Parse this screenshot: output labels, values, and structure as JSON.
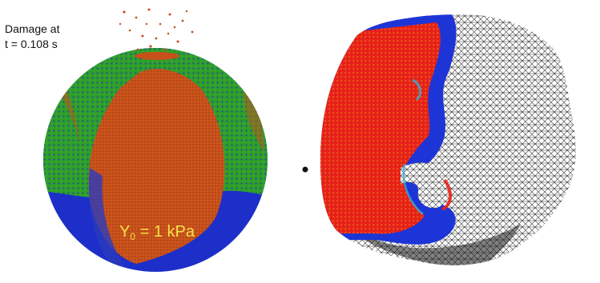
{
  "damage_label": {
    "line1": "Damage at",
    "line2": "t = 0.108 s"
  },
  "yield_label": {
    "symbol": "Y",
    "subscript": "0",
    "rest": " = 1 kPa"
  },
  "colors": {
    "undamaged": "#1d2fc8",
    "partial_damage": "#2f9e2a",
    "damaged": "#c8501a",
    "fully_damaged": "#e8231a",
    "mesh": "#222222",
    "mesh_background": "#ffffff",
    "yield_text": "#f2e24a"
  },
  "figure": {
    "left_panel": "sph-particle-asteroid-damage-render",
    "right_panel": "asteroid-mesh-damage-map",
    "marker": "small-black-dot"
  }
}
